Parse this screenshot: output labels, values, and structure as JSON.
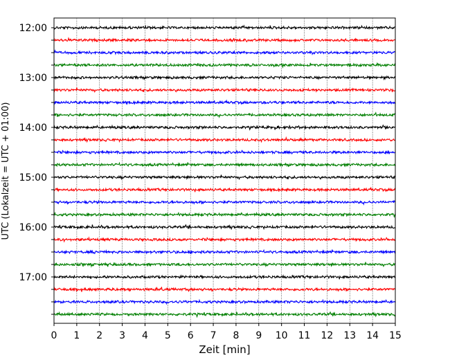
{
  "chart_data": {
    "type": "line",
    "title": "",
    "xlabel": "Zeit  [min]",
    "ylabel": "UTC (Lokalzeit = UTC + 01:00)",
    "xlim": [
      0,
      15
    ],
    "x_ticks": [
      "0",
      "1",
      "2",
      "3",
      "4",
      "5",
      "6",
      "7",
      "8",
      "9",
      "10",
      "11",
      "12",
      "13",
      "14",
      "15"
    ],
    "y_tick_labels": [
      "12:00",
      "13:00",
      "14:00",
      "15:00",
      "16:00",
      "17:00"
    ],
    "grid": "vertical dotted",
    "trace_colors": [
      "#000000",
      "#ff0000",
      "#0000ff",
      "#007f00"
    ],
    "traces_start": "12:00",
    "trace_interval_minutes": 15,
    "trace_count": 24,
    "series": [
      {
        "start": "12:00",
        "color": "#000000"
      },
      {
        "start": "12:15",
        "color": "#ff0000"
      },
      {
        "start": "12:30",
        "color": "#0000ff"
      },
      {
        "start": "12:45",
        "color": "#007f00"
      },
      {
        "start": "13:00",
        "color": "#000000"
      },
      {
        "start": "13:15",
        "color": "#ff0000"
      },
      {
        "start": "13:30",
        "color": "#0000ff"
      },
      {
        "start": "13:45",
        "color": "#007f00"
      },
      {
        "start": "14:00",
        "color": "#000000"
      },
      {
        "start": "14:15",
        "color": "#ff0000"
      },
      {
        "start": "14:30",
        "color": "#0000ff"
      },
      {
        "start": "14:45",
        "color": "#007f00"
      },
      {
        "start": "15:00",
        "color": "#000000"
      },
      {
        "start": "15:15",
        "color": "#ff0000"
      },
      {
        "start": "15:30",
        "color": "#0000ff"
      },
      {
        "start": "15:45",
        "color": "#007f00"
      },
      {
        "start": "16:00",
        "color": "#000000"
      },
      {
        "start": "16:15",
        "color": "#ff0000"
      },
      {
        "start": "16:30",
        "color": "#0000ff"
      },
      {
        "start": "16:45",
        "color": "#007f00"
      },
      {
        "start": "17:00",
        "color": "#000000"
      },
      {
        "start": "17:15",
        "color": "#ff0000"
      },
      {
        "start": "17:30",
        "color": "#0000ff"
      },
      {
        "start": "17:45",
        "color": "#007f00"
      }
    ]
  }
}
